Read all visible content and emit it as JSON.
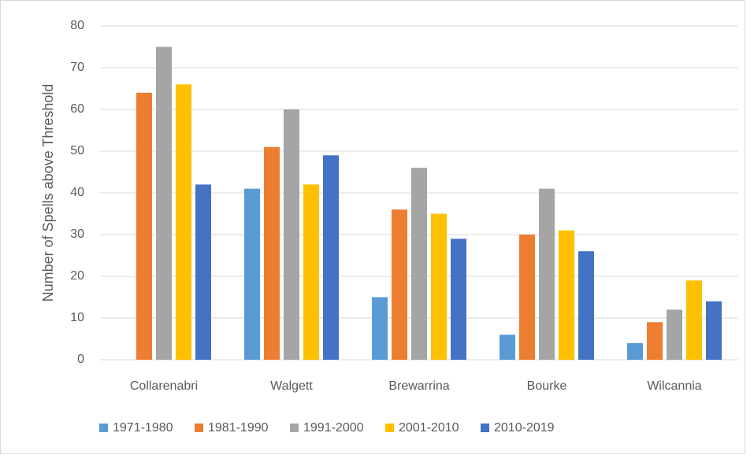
{
  "chart_data": {
    "type": "bar",
    "y_label": "Number of Spells above Threshold",
    "categories": [
      "Collarenabri",
      "Walgett",
      "Brewarrina",
      "Bourke",
      "Wilcannia"
    ],
    "series": [
      {
        "name": "1971-1980",
        "color": "#5b9bd5",
        "values": [
          null,
          41,
          15,
          6,
          4
        ]
      },
      {
        "name": "1981-1990",
        "color": "#ed7d31",
        "values": [
          64,
          51,
          36,
          30,
          9
        ]
      },
      {
        "name": "1991-2000",
        "color": "#a5a5a5",
        "values": [
          75,
          60,
          46,
          41,
          12
        ]
      },
      {
        "name": "2001-2010",
        "color": "#ffc000",
        "values": [
          66,
          42,
          35,
          31,
          19
        ]
      },
      {
        "name": "2010-2019",
        "color": "#4472c4",
        "values": [
          42,
          49,
          29,
          26,
          14
        ]
      }
    ],
    "ylim": [
      0,
      80
    ],
    "yticks": [
      0,
      10,
      20,
      30,
      40,
      50,
      60,
      70,
      80
    ],
    "grid": true,
    "legend": "bottom"
  }
}
